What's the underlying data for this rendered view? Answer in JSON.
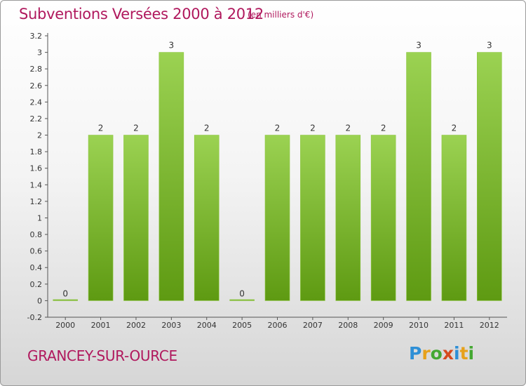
{
  "header": {
    "title": "Subventions Versées 2000 à 2012",
    "unit_note": "(en milliers d'€)"
  },
  "footer": {
    "commune": "GRANCEY-SUR-OURCE",
    "brand": "Proxiti",
    "brand_colors": [
      "#2e8fd6",
      "#e7a11b",
      "#44a832",
      "#d64a1e",
      "#2e8fd6",
      "#e7a11b",
      "#44a832"
    ]
  },
  "colors": {
    "bar_top": "#9bd252",
    "bar_bottom": "#5e9a12",
    "text": "#333333",
    "axis": "#555555",
    "title": "#b0185d"
  },
  "chart_data": {
    "type": "bar",
    "title": "Subventions Versées 2000 à 2012",
    "subtitle": "(en milliers d'€)",
    "categories": [
      "2000",
      "2001",
      "2002",
      "2003",
      "2004",
      "2005",
      "2006",
      "2007",
      "2008",
      "2009",
      "2010",
      "2011",
      "2012"
    ],
    "values": [
      0,
      2,
      2,
      3,
      2,
      0,
      2,
      2,
      2,
      2,
      3,
      2,
      3
    ],
    "value_labels": [
      "0",
      "2",
      "2",
      "3",
      "2",
      "0",
      "2",
      "2",
      "2",
      "2",
      "3",
      "2",
      "3"
    ],
    "ylim": [
      -0.2,
      3.2
    ],
    "yticks": [
      -0.2,
      0,
      0.2,
      0.4,
      0.6,
      0.8,
      1,
      1.2,
      1.4,
      1.6,
      1.8,
      2,
      2.2,
      2.4,
      2.6,
      2.8,
      3,
      3.2
    ],
    "ytick_labels": [
      "-0.2",
      "0",
      "0.2",
      "0.4",
      "0.6",
      "0.8",
      "1",
      "1.2",
      "1.4",
      "1.6",
      "1.8",
      "2",
      "2.2",
      "2.4",
      "2.6",
      "2.8",
      "3",
      "3.2"
    ],
    "grid": false,
    "legend": "none"
  }
}
